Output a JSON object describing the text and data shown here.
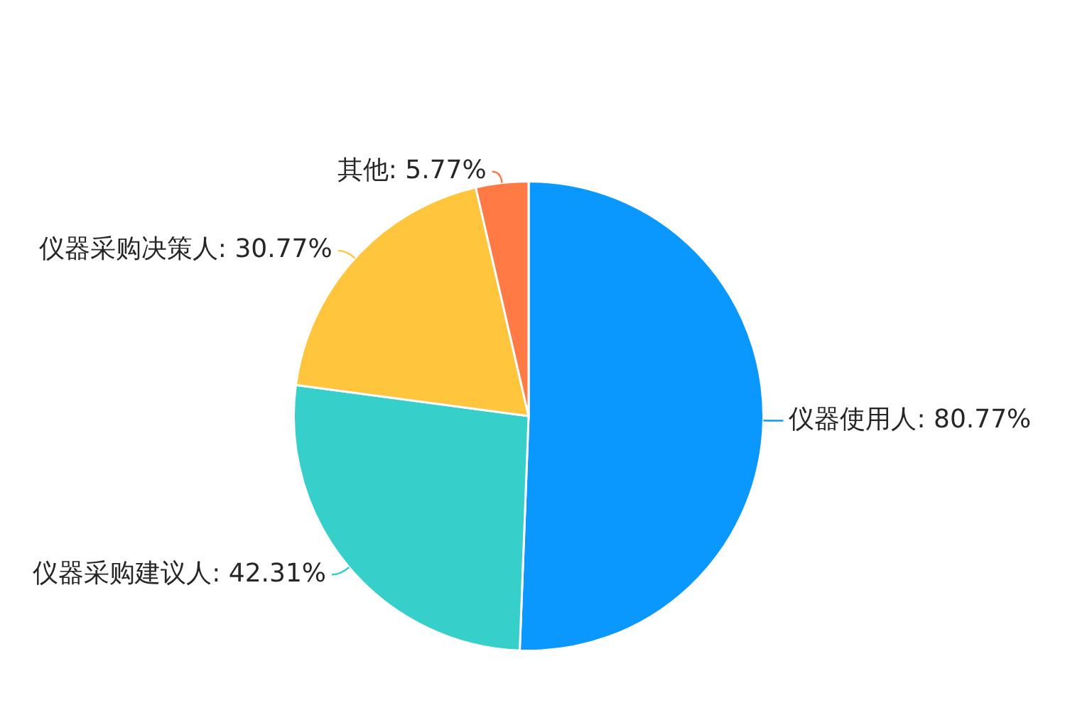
{
  "chart_data": {
    "type": "pie",
    "categories": [
      "仪器使用人",
      "仪器采购建议人",
      "仪器采购决策人",
      "其他"
    ],
    "values": [
      80.77,
      42.31,
      30.77,
      5.77
    ],
    "value_labels": [
      "80.77%",
      "42.31%",
      "30.77%",
      "5.77%"
    ],
    "colors": [
      "#0a98fe",
      "#37cfc9",
      "#ffc53d",
      "#ff7a45"
    ]
  }
}
